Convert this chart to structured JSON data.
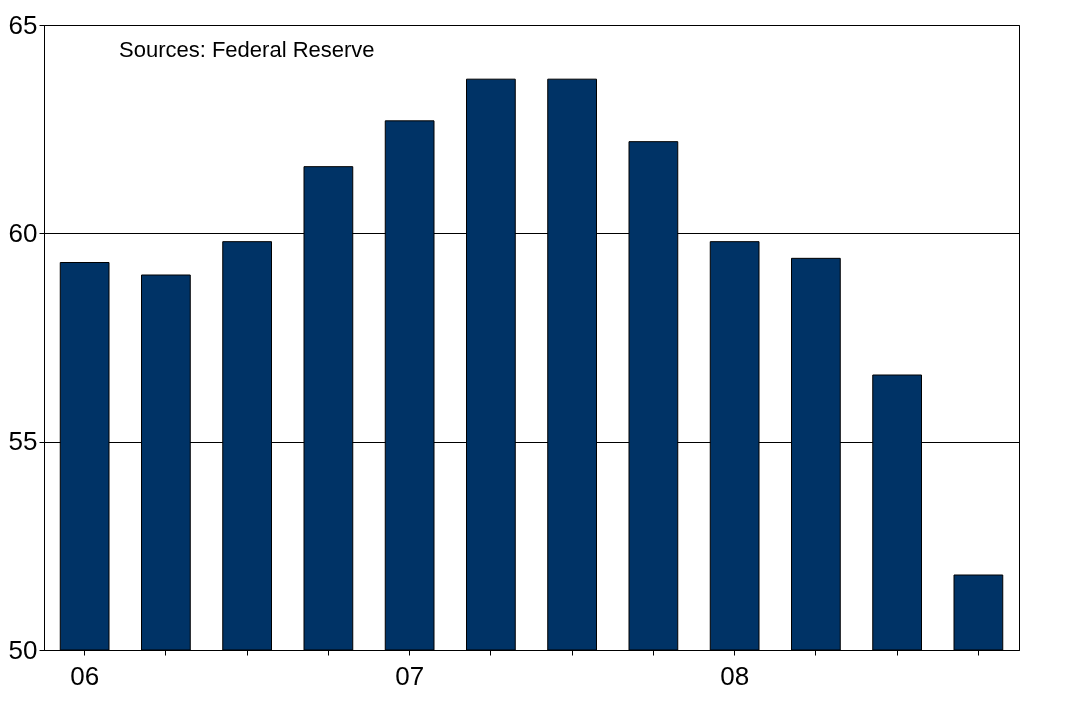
{
  "chart_data": {
    "type": "bar",
    "categories": [
      "06",
      null,
      null,
      null,
      "07",
      null,
      null,
      null,
      "08",
      null,
      null,
      null
    ],
    "values": [
      59.3,
      59.0,
      59.8,
      61.6,
      62.7,
      63.7,
      63.7,
      62.2,
      59.8,
      59.4,
      56.6,
      51.8
    ],
    "color": "#003366",
    "ylim": [
      50,
      65
    ],
    "yticks": [
      50,
      55,
      60,
      65
    ],
    "grid": "y",
    "annotations": [
      "Sources: Federal Reserve"
    ]
  }
}
